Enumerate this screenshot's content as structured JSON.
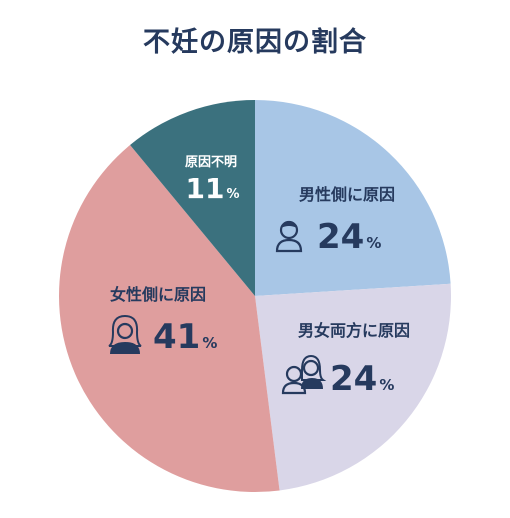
{
  "title": "不妊の原因の割合",
  "colors": {
    "title": "#263a5e",
    "text_dark": "#263a5e",
    "text_light": "#ffffff"
  },
  "chart_data": {
    "type": "pie",
    "title": "不妊の原因の割合",
    "unit": "%",
    "slices": [
      {
        "label": "男性側に原因",
        "value": 24,
        "color": "#a8c6e6",
        "icon": "man-icon"
      },
      {
        "label": "男女両方に原因",
        "value": 24,
        "color": "#d9d6e8",
        "icon": "couple-icon"
      },
      {
        "label": "女性側に原因",
        "value": 41,
        "color": "#df9e9e",
        "icon": "woman-icon"
      },
      {
        "label": "原因不明",
        "value": 11,
        "color": "#3b717e",
        "icon": ""
      }
    ]
  }
}
